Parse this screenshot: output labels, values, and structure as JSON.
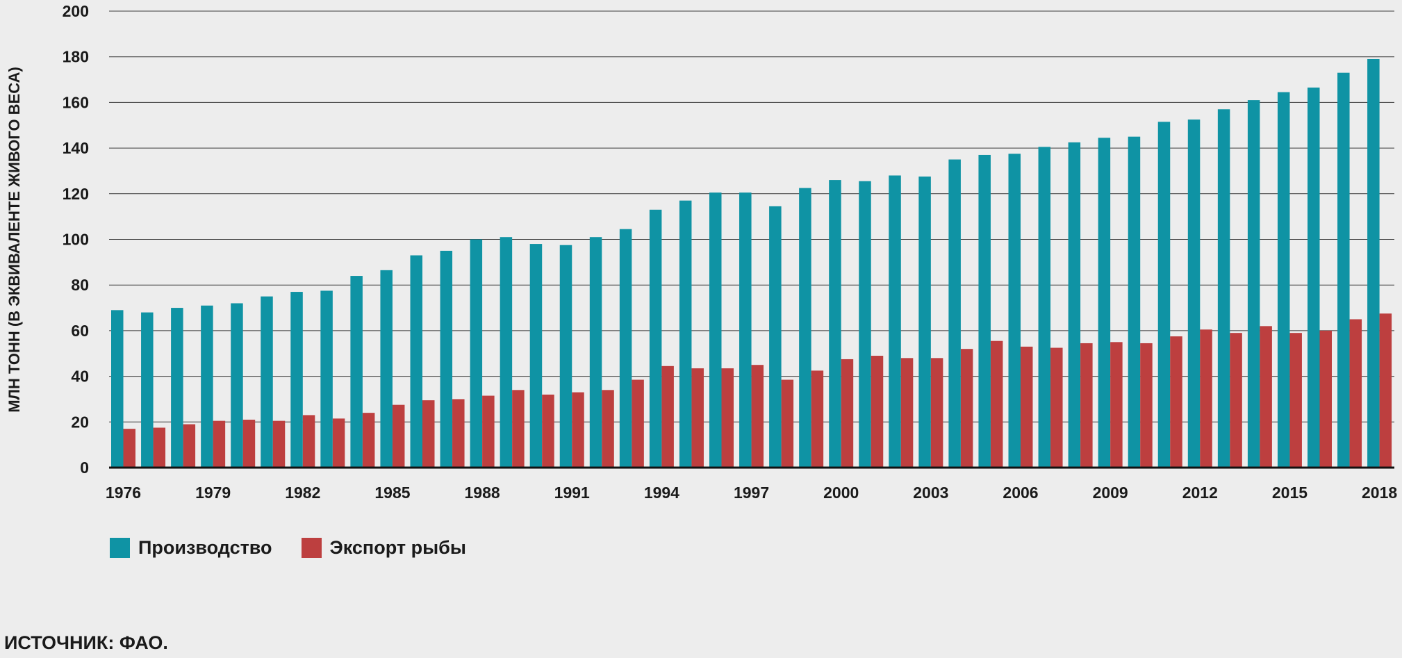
{
  "chart_data": {
    "type": "bar",
    "title": "",
    "xlabel": "",
    "ylabel": "МЛН ТОНН (В ЭКВИВАЛЕНТЕ ЖИВОГО ВЕСА)",
    "ylim": [
      0,
      200
    ],
    "yticks": [
      0,
      20,
      40,
      60,
      80,
      100,
      120,
      140,
      160,
      180,
      200
    ],
    "categories": [
      1976,
      1977,
      1978,
      1979,
      1980,
      1981,
      1982,
      1983,
      1984,
      1985,
      1986,
      1987,
      1988,
      1989,
      1990,
      1991,
      1992,
      1993,
      1994,
      1995,
      1996,
      1997,
      1998,
      1999,
      2000,
      2001,
      2002,
      2003,
      2004,
      2005,
      2006,
      2007,
      2008,
      2009,
      2010,
      2011,
      2012,
      2013,
      2014,
      2015,
      2016,
      2017,
      2018
    ],
    "xtick_labels": [
      1976,
      1979,
      1982,
      1985,
      1988,
      1991,
      1994,
      1997,
      2000,
      2003,
      2006,
      2009,
      2012,
      2015,
      2018
    ],
    "series": [
      {
        "name": "Производство",
        "color": "#0f93a4",
        "values": [
          69,
          68,
          70,
          71,
          72,
          75,
          77,
          77.5,
          84,
          86.5,
          93,
          95,
          100,
          101,
          98,
          97.5,
          101,
          104.5,
          113,
          117,
          120.5,
          120.5,
          114.5,
          122.5,
          126,
          125.5,
          128,
          127.5,
          135,
          137,
          137.5,
          140.5,
          142.5,
          144.5,
          145,
          151.5,
          152.5,
          157,
          161,
          164.5,
          166.5,
          173,
          179
        ]
      },
      {
        "name": "Экспорт рыбы",
        "color": "#bd3f3f",
        "values": [
          17,
          17.5,
          19,
          20.5,
          21,
          20.5,
          23,
          21.5,
          24,
          27.5,
          29.5,
          30,
          31.5,
          34,
          32,
          33,
          34,
          38.5,
          44.5,
          43.5,
          43.5,
          45,
          38.5,
          42.5,
          47.5,
          49,
          48,
          48,
          52,
          55.5,
          53,
          52.5,
          54.5,
          55,
          54.5,
          57.5,
          60.5,
          59,
          62,
          59,
          60,
          65,
          67.5
        ]
      }
    ]
  },
  "legend": {
    "production": "Производство",
    "export": "Экспорт рыбы"
  },
  "colors": {
    "production": "#0f93a4",
    "export": "#bd3f3f",
    "background": "#ededed"
  },
  "source": "ИСТОЧНИК: ФАО."
}
